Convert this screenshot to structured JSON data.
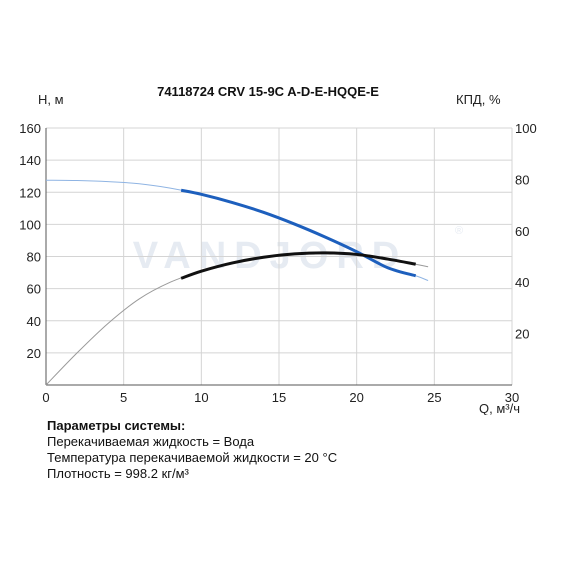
{
  "chart_data": {
    "type": "line",
    "title": "74118724 CRV 15-9C A-D-E-HQQE-E",
    "left_axis_label": "H, м",
    "right_axis_label": "КПД, %",
    "xlabel": "Q, м³/ч",
    "xlim": [
      0,
      30
    ],
    "ylim": [
      0,
      160
    ],
    "y2lim": [
      0,
      100
    ],
    "x_ticks": [
      0,
      5,
      10,
      15,
      20,
      25,
      30
    ],
    "y_ticks": [
      20,
      40,
      60,
      80,
      100,
      120,
      140,
      160
    ],
    "y2_ticks": [
      20,
      40,
      60,
      80,
      100
    ],
    "watermark": "VANDJORD",
    "series": [
      {
        "axis": "left",
        "color": "#1d5fbd",
        "range_color": "#8fb4e3",
        "op_range": [
          8.7,
          23.8
        ],
        "x": [
          0,
          2,
          4,
          6,
          8,
          10,
          12,
          14,
          16,
          18,
          20,
          22,
          23.8,
          24.6
        ],
        "y": [
          127.5,
          127.3,
          126.6,
          125.3,
          122.6,
          118.7,
          113.6,
          107.5,
          100.2,
          92,
          83,
          73,
          68,
          65
        ]
      },
      {
        "axis": "right",
        "color": "#111111",
        "range_color": "#9a9a9a",
        "op_range": [
          8.7,
          23.8
        ],
        "x": [
          0,
          2,
          4,
          6,
          8,
          10,
          12,
          14,
          16,
          18,
          20,
          22,
          23.8,
          24.6
        ],
        "y": [
          0,
          12.5,
          24,
          33.5,
          40,
          44.3,
          47.5,
          49.7,
          51,
          51.4,
          50.8,
          49,
          47,
          46
        ]
      }
    ]
  },
  "params": {
    "heading": "Параметры системы:",
    "fluid": "Перекачиваемая жидкость = Вода",
    "temperature": "Температура перекачиваемой жидкости = 20 °C",
    "density": "Плотность = 998.2 кг/м³"
  }
}
